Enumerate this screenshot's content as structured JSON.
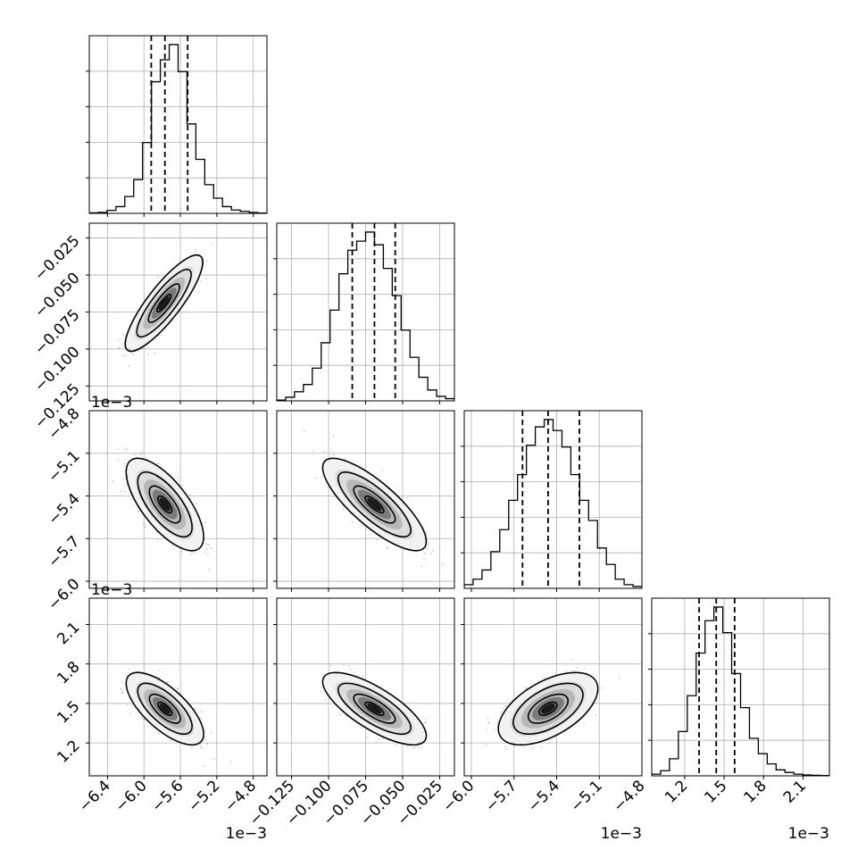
{
  "chart_data": {
    "type": "corner",
    "grid": true,
    "parameters": [
      {
        "range": [
          -6.6,
          -4.65
        ],
        "ticks": [
          -6.4,
          -6.0,
          -5.6,
          -5.2,
          -4.8
        ],
        "tick_labels": [
          "−6.4",
          "−6.0",
          "−5.6",
          "−5.2",
          "−4.8"
        ],
        "offset_label": "1e−3",
        "quantiles": [
          -5.92,
          -5.77,
          -5.52
        ]
      },
      {
        "range": [
          -0.135,
          -0.015
        ],
        "ticks": [
          -0.125,
          -0.1,
          -0.075,
          -0.05,
          -0.025
        ],
        "tick_labels": [
          "−0.125",
          "−0.100",
          "−0.075",
          "−0.050",
          "−0.025"
        ],
        "offset_label": "",
        "quantiles": [
          -0.084,
          -0.069,
          -0.055
        ]
      },
      {
        "range": [
          -6.05,
          -4.8
        ],
        "ticks": [
          -6.0,
          -5.7,
          -5.4,
          -5.1,
          -4.8
        ],
        "tick_labels": [
          "−6.0",
          "−5.7",
          "−5.4",
          "−5.1",
          "−4.8"
        ],
        "offset_label": "1e−3",
        "quantiles": [
          -5.64,
          -5.46,
          -5.24
        ]
      },
      {
        "range": [
          0.95,
          2.3
        ],
        "ticks": [
          1.2,
          1.5,
          1.8,
          2.1
        ],
        "tick_labels": [
          "1.2",
          "1.5",
          "1.8",
          "2.1"
        ],
        "offset_label": "1e−3",
        "quantiles": [
          1.31,
          1.44,
          1.58
        ]
      }
    ],
    "histograms": [
      [
        0.003,
        0.006,
        0.018,
        0.04,
        0.1,
        0.2,
        0.42,
        0.78,
        0.91,
        1.0,
        0.84,
        0.53,
        0.32,
        0.17,
        0.09,
        0.04,
        0.02,
        0.012,
        0.005,
        0.002
      ],
      [
        0.004,
        0.02,
        0.05,
        0.09,
        0.18,
        0.32,
        0.5,
        0.7,
        0.83,
        0.88,
        0.93,
        0.86,
        0.73,
        0.58,
        0.39,
        0.24,
        0.13,
        0.06,
        0.025,
        0.012
      ],
      [
        0.02,
        0.05,
        0.1,
        0.2,
        0.32,
        0.48,
        0.62,
        0.78,
        0.88,
        0.92,
        0.86,
        0.77,
        0.62,
        0.48,
        0.37,
        0.22,
        0.13,
        0.05,
        0.02,
        0.01
      ],
      [
        0.01,
        0.03,
        0.1,
        0.26,
        0.47,
        0.72,
        0.91,
        0.99,
        0.84,
        0.6,
        0.4,
        0.22,
        0.13,
        0.07,
        0.035,
        0.02,
        0.01,
        0.005,
        0.003,
        0.002
      ]
    ],
    "pairs": [
      {
        "x": 0,
        "y": 1,
        "center": [
          -5.78,
          -0.069
        ],
        "sd": [
          0.17,
          0.013
        ],
        "rho": 0.85
      },
      {
        "x": 0,
        "y": 2,
        "center": [
          -5.77,
          -5.46
        ],
        "sd": [
          0.17,
          0.13
        ],
        "rho": -0.7
      },
      {
        "x": 1,
        "y": 2,
        "center": [
          -0.069,
          -5.46
        ],
        "sd": [
          0.014,
          0.13
        ],
        "rho": -0.8
      },
      {
        "x": 0,
        "y": 3,
        "center": [
          -5.77,
          1.46
        ],
        "sd": [
          0.17,
          0.11
        ],
        "rho": -0.7
      },
      {
        "x": 1,
        "y": 3,
        "center": [
          -0.069,
          1.46
        ],
        "sd": [
          0.014,
          0.11
        ],
        "rho": -0.75
      },
      {
        "x": 2,
        "y": 3,
        "center": [
          -5.46,
          1.46
        ],
        "sd": [
          0.14,
          0.11
        ],
        "rho": 0.55
      }
    ]
  }
}
